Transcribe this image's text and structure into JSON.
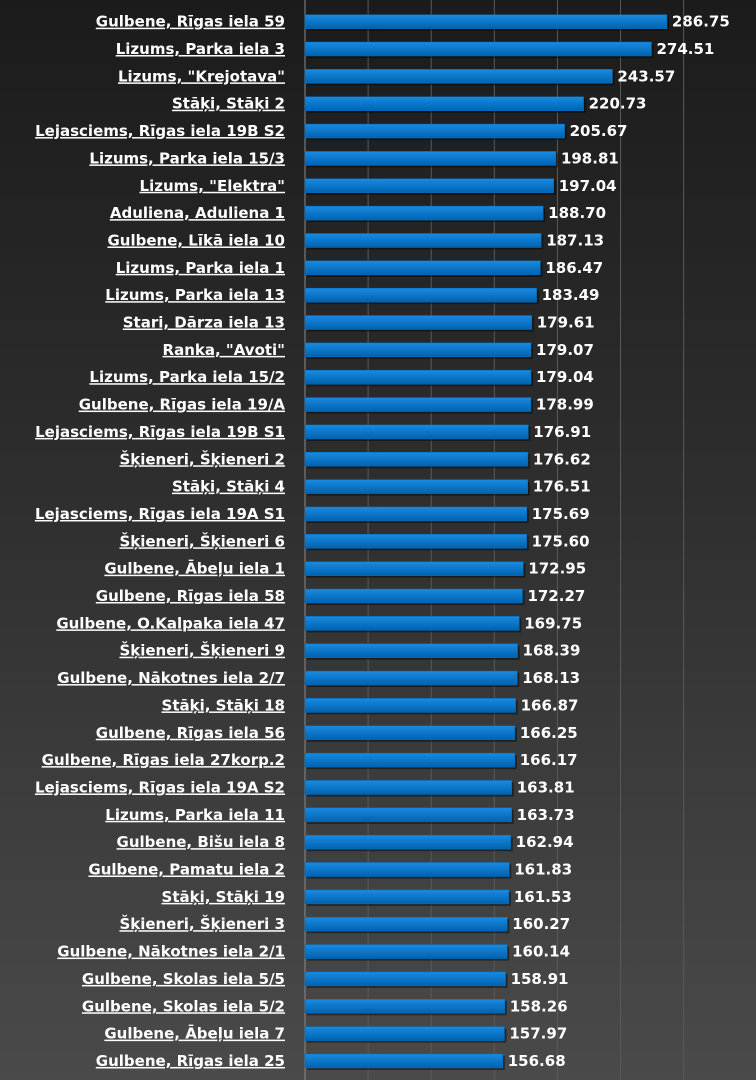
{
  "chart_data": {
    "type": "bar",
    "orientation": "horizontal",
    "title": "",
    "xlabel": "",
    "ylabel": "",
    "xlim": [
      0,
      300
    ],
    "grid": true,
    "bar_color": "#0070c0",
    "categories": [
      "Gulbene, Rīgas iela 59",
      "Lizums, Parka iela 3",
      "Lizums, \"Krejotava\"",
      "Stāķi, Stāķi 2",
      "Lejasciems, Rīgas iela 19B S2",
      "Lizums, Parka iela 15/3",
      "Lizums, \"Elektra\"",
      "Aduliena, Aduliena 1",
      "Gulbene, Līkā iela 10",
      "Lizums, Parka iela 1",
      "Lizums, Parka iela 13",
      "Stari, Dārza iela 13",
      "Ranka, \"Avoti\"",
      "Lizums, Parka iela 15/2",
      "Gulbene, Rīgas iela 19/A",
      "Lejasciems, Rīgas iela 19B S1",
      "Šķieneri, Šķieneri 2",
      "Stāķi, Stāķi 4",
      "Lejasciems, Rīgas iela 19A S1",
      "Šķieneri, Šķieneri 6",
      "Gulbene, Ābeļu iela 1",
      "Gulbene, Rīgas iela 58",
      "Gulbene, O.Kalpaka iela 47",
      "Šķieneri, Šķieneri 9",
      "Gulbene, Nākotnes iela 2/7",
      "Stāķi, Stāķi 18",
      "Gulbene, Rīgas iela 56",
      "Gulbene, Rīgas iela 27korp.2",
      "Lejasciems, Rīgas iela 19A S2",
      "Lizums, Parka iela 11",
      "Gulbene, Bišu iela 8",
      "Gulbene, Pamatu iela 2",
      "Stāķi, Stāķi 19",
      "Šķieneri, Šķieneri 3",
      "Gulbene, Nākotnes iela 2/1",
      "Gulbene, Skolas iela 5/5",
      "Gulbene, Skolas iela 5/2",
      "Gulbene, Ābeļu iela 7",
      "Gulbene, Rīgas iela 25"
    ],
    "values": [
      286.75,
      274.51,
      243.57,
      220.73,
      205.67,
      198.81,
      197.04,
      188.7,
      187.13,
      186.47,
      183.49,
      179.61,
      179.07,
      179.04,
      178.99,
      176.91,
      176.62,
      176.51,
      175.69,
      175.6,
      172.95,
      172.27,
      169.75,
      168.39,
      168.13,
      166.87,
      166.25,
      166.17,
      163.81,
      163.73,
      162.94,
      161.83,
      161.53,
      160.27,
      160.14,
      158.91,
      158.26,
      157.97,
      156.68
    ],
    "value_labels": [
      "286.75",
      "274.51",
      "243.57",
      "220.73",
      "205.67",
      "198.81",
      "197.04",
      "188.70",
      "187.13",
      "186.47",
      "183.49",
      "179.61",
      "179.07",
      "179.04",
      "178.99",
      "176.91",
      "176.62",
      "176.51",
      "175.69",
      "175.60",
      "172.95",
      "172.27",
      "169.75",
      "168.39",
      "168.13",
      "166.87",
      "166.25",
      "166.17",
      "163.81",
      "163.73",
      "162.94",
      "161.83",
      "161.53",
      "160.27",
      "160.14",
      "158.91",
      "158.26",
      "157.97",
      "156.68"
    ]
  }
}
